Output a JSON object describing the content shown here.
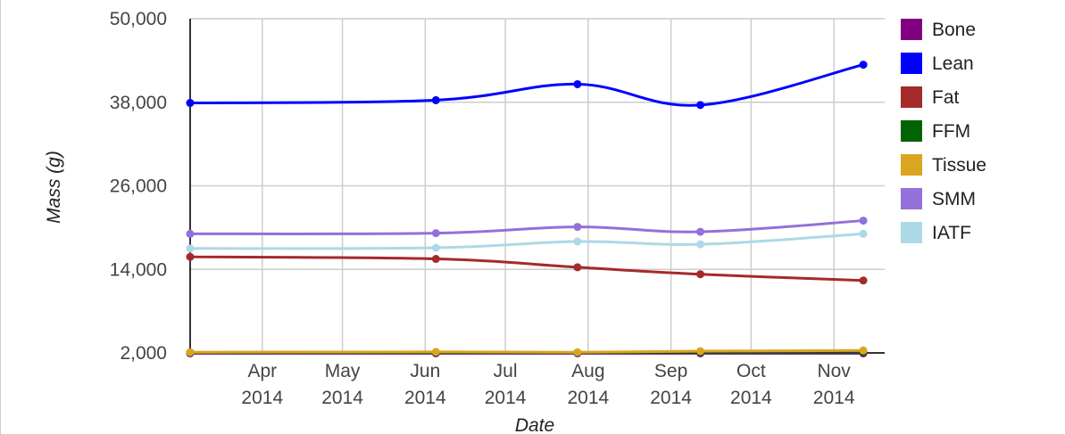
{
  "chart_data": {
    "type": "line",
    "xlabel": "Date",
    "ylabel": "Mass (g)",
    "x_range": [
      "2014-03-05",
      "2014-11-20"
    ],
    "ylim": [
      2000,
      50000
    ],
    "y_ticks": [
      2000,
      14000,
      26000,
      38000,
      50000
    ],
    "y_tick_labels": [
      "2,000",
      "14,000",
      "26,000",
      "38,000",
      "50,000"
    ],
    "x_ticks": [
      {
        "date": "2014-04-01",
        "label_top": "Apr",
        "label_bottom": "2014"
      },
      {
        "date": "2014-05-01",
        "label_top": "May",
        "label_bottom": "2014"
      },
      {
        "date": "2014-06-01",
        "label_top": "Jun",
        "label_bottom": "2014"
      },
      {
        "date": "2014-07-01",
        "label_top": "Jul",
        "label_bottom": "2014"
      },
      {
        "date": "2014-08-01",
        "label_top": "Aug",
        "label_bottom": "2014"
      },
      {
        "date": "2014-09-01",
        "label_top": "Sep",
        "label_bottom": "2014"
      },
      {
        "date": "2014-10-01",
        "label_top": "Oct",
        "label_bottom": "2014"
      },
      {
        "date": "2014-11-01",
        "label_top": "Nov",
        "label_bottom": "2014"
      }
    ],
    "x": [
      "2014-03-05",
      "2014-06-05",
      "2014-07-28",
      "2014-09-12",
      "2014-11-12"
    ],
    "grid": true,
    "legend_position": "right",
    "series": [
      {
        "name": "Bone",
        "color": "#800080",
        "values": [
          1950,
          1950,
          1950,
          1950,
          1950
        ]
      },
      {
        "name": "Lean",
        "color": "#0000ff",
        "values": [
          37900,
          38300,
          40600,
          37600,
          43400
        ]
      },
      {
        "name": "Fat",
        "color": "#a52a2a",
        "values": [
          15800,
          15500,
          14300,
          13300,
          12400
        ]
      },
      {
        "name": "FFM",
        "color": "#006400",
        "values": [
          2050,
          2050,
          2050,
          2100,
          2150
        ]
      },
      {
        "name": "Tissue",
        "color": "#daa520",
        "values": [
          2100,
          2150,
          2100,
          2250,
          2350
        ]
      },
      {
        "name": "SMM",
        "color": "#9370db",
        "values": [
          19100,
          19200,
          20100,
          19400,
          21000
        ]
      },
      {
        "name": "IATF",
        "color": "#add8e6",
        "values": [
          17000,
          17100,
          18000,
          17600,
          19100
        ]
      }
    ]
  }
}
